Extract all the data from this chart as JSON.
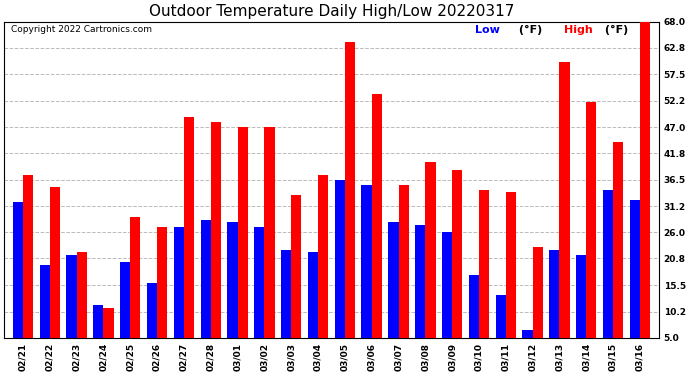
{
  "title": "Outdoor Temperature Daily High/Low 20220317",
  "copyright": "Copyright 2022 Cartronics.com",
  "legend_low": "Low",
  "legend_unit": "(°F)",
  "legend_high": "High",
  "categories": [
    "02/21",
    "02/22",
    "02/23",
    "02/24",
    "02/25",
    "02/26",
    "02/27",
    "02/28",
    "03/01",
    "03/02",
    "03/03",
    "03/04",
    "03/05",
    "03/06",
    "03/07",
    "03/08",
    "03/09",
    "03/10",
    "03/11",
    "03/12",
    "03/13",
    "03/14",
    "03/15",
    "03/16"
  ],
  "highs": [
    37.5,
    35.0,
    22.0,
    11.0,
    29.0,
    27.0,
    49.0,
    48.0,
    47.0,
    47.0,
    33.5,
    37.5,
    64.0,
    53.5,
    35.5,
    40.0,
    38.5,
    34.5,
    34.0,
    23.0,
    60.0,
    52.0,
    44.0,
    68.0
  ],
  "lows": [
    32.0,
    19.5,
    21.5,
    11.5,
    20.0,
    16.0,
    27.0,
    28.5,
    28.0,
    27.0,
    22.5,
    22.0,
    36.5,
    35.5,
    28.0,
    27.5,
    26.0,
    17.5,
    13.5,
    6.5,
    22.5,
    21.5,
    34.5,
    32.5
  ],
  "bar_color_high": "#ff0000",
  "bar_color_low": "#0000ff",
  "background_color": "#ffffff",
  "grid_color": "#bbbbbb",
  "yticks": [
    5.0,
    10.2,
    15.5,
    20.8,
    26.0,
    31.2,
    36.5,
    41.8,
    47.0,
    52.2,
    57.5,
    62.8,
    68.0
  ],
  "ymin": 5.0,
  "ymax": 68.0,
  "bar_width": 0.38,
  "title_fontsize": 11,
  "tick_fontsize": 6.5,
  "legend_fontsize": 8,
  "copyright_fontsize": 6.5
}
